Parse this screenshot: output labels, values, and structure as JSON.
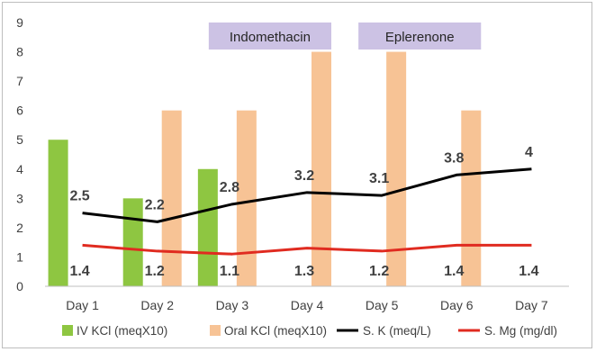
{
  "chart_data": {
    "type": "bar",
    "categories": [
      "Day 1",
      "Day 2",
      "Day 3",
      "Day 4",
      "Day 5",
      "Day 6",
      "Day 7"
    ],
    "ylim": [
      0,
      9
    ],
    "yticks": [
      0,
      1,
      2,
      3,
      4,
      5,
      6,
      7,
      8,
      9
    ],
    "grid": false,
    "legend_position": "bottom",
    "bar_series": [
      {
        "name": "IV KCl (meqX10)",
        "color": "#8ec641",
        "values": [
          5,
          3,
          4,
          null,
          null,
          null,
          null
        ]
      },
      {
        "name": "Oral KCl (meqX10)",
        "color": "#f7c395",
        "values": [
          null,
          6,
          6,
          8,
          8,
          6,
          null
        ]
      }
    ],
    "line_series": [
      {
        "name": "S. K (meq/L)",
        "color": "#000000",
        "values": [
          2.5,
          2.2,
          2.8,
          3.2,
          3.1,
          3.8,
          4
        ],
        "labels": [
          "2.5",
          "2.2",
          "2.8",
          "3.2",
          "3.1",
          "3.8",
          "4"
        ]
      },
      {
        "name": "S. Mg (mg/dl)",
        "color": "#e02b20",
        "values": [
          1.4,
          1.2,
          1.1,
          1.3,
          1.2,
          1.4,
          1.4
        ],
        "labels": [
          "1.4",
          "1.2",
          "1.1",
          "1.3",
          "1.2",
          "1.4",
          "1.4"
        ]
      }
    ],
    "annotations": [
      {
        "text": "Indomethacin",
        "from": "Day 3",
        "to": "Day 4",
        "color": "#ccc2e4"
      },
      {
        "text": "Eplerenone",
        "from": "Day 5",
        "to": "Day 6",
        "color": "#ccc2e4"
      }
    ]
  }
}
